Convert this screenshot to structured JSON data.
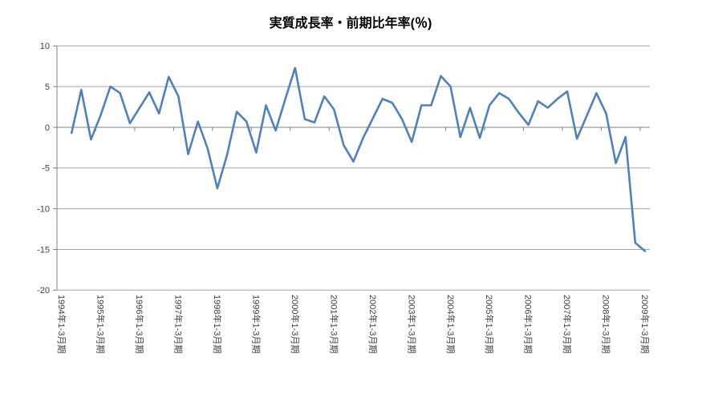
{
  "chart_data": {
    "type": "line",
    "title": "実質成長率・前期比年率(％)",
    "legend": "none",
    "grid": "horizontal",
    "ylim": [
      -20,
      10
    ],
    "y_tick_step": 5,
    "y_tick_labels": [
      "10",
      "5",
      "0",
      "-5",
      "-10",
      "-15",
      "-20"
    ],
    "x_axis_labels": [
      "1994年1-3月期",
      "1995年1-3月期",
      "1996年1-3月期",
      "1997年1-3月期",
      "1998年1-3月期",
      "1999年1-3月期",
      "2000年1-3月期",
      "2001年1-3月期",
      "2002年1-3月期",
      "2003年1-3月期",
      "2004年1-3月期",
      "2005年1-3月期",
      "2006年1-3月期",
      "2007年1-3月期",
      "2008年1-3月期",
      "2009年1-3月期"
    ],
    "x_label_interval": 4,
    "categories": [
      "1994Q1",
      "1994Q2",
      "1994Q3",
      "1994Q4",
      "1995Q1",
      "1995Q2",
      "1995Q3",
      "1995Q4",
      "1996Q1",
      "1996Q2",
      "1996Q3",
      "1996Q4",
      "1997Q1",
      "1997Q2",
      "1997Q3",
      "1997Q4",
      "1998Q1",
      "1998Q2",
      "1998Q3",
      "1998Q4",
      "1999Q1",
      "1999Q2",
      "1999Q3",
      "1999Q4",
      "2000Q1",
      "2000Q2",
      "2000Q3",
      "2000Q4",
      "2001Q1",
      "2001Q2",
      "2001Q3",
      "2001Q4",
      "2002Q1",
      "2002Q2",
      "2002Q3",
      "2002Q4",
      "2003Q1",
      "2003Q2",
      "2003Q3",
      "2003Q4",
      "2004Q1",
      "2004Q2",
      "2004Q3",
      "2004Q4",
      "2005Q1",
      "2005Q2",
      "2005Q3",
      "2005Q4",
      "2006Q1",
      "2006Q2",
      "2006Q3",
      "2006Q4",
      "2007Q1",
      "2007Q2",
      "2007Q3",
      "2007Q4",
      "2008Q1",
      "2008Q2",
      "2008Q3",
      "2008Q4",
      "2009Q1"
    ],
    "values": [
      null,
      -0.7,
      4.6,
      -1.5,
      1.5,
      5.0,
      4.2,
      0.5,
      2.4,
      4.3,
      1.7,
      6.2,
      3.8,
      -3.3,
      0.7,
      -2.6,
      -7.5,
      -3.4,
      1.9,
      0.7,
      -3.1,
      2.7,
      -0.4,
      3.5,
      7.3,
      1.0,
      0.6,
      3.8,
      2.2,
      -2.2,
      -4.2,
      -1.3,
      1.1,
      3.5,
      3.0,
      1.0,
      -1.8,
      2.7,
      2.7,
      6.3,
      5.0,
      -1.2,
      2.4,
      -1.3,
      2.7,
      4.2,
      3.5,
      1.8,
      0.3,
      3.2,
      2.4,
      3.5,
      4.4,
      -1.4,
      1.4,
      4.2,
      1.7,
      -4.4,
      -1.2,
      -14.2,
      -15.2
    ]
  },
  "colors": {
    "series": "#4f81bd",
    "gridline": "#a6a6a6",
    "axis": "#808080",
    "tick": "#808080",
    "label_text": "#404040",
    "title_text": "#000000",
    "background": "#ffffff"
  }
}
